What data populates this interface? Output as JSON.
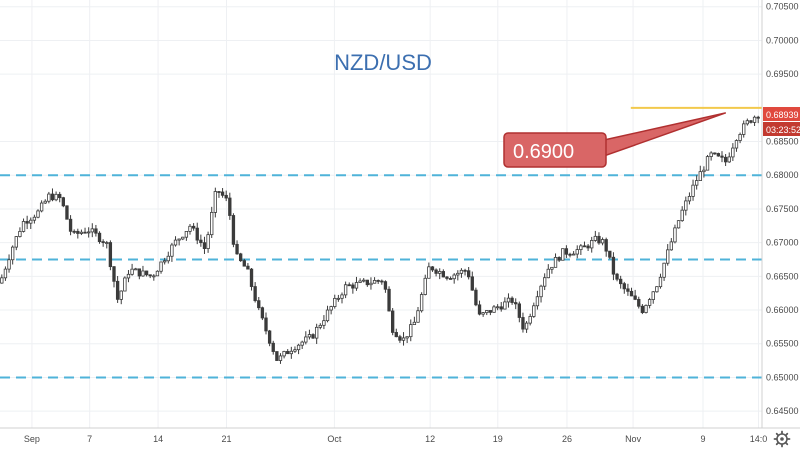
{
  "chart_data": {
    "type": "candlestick",
    "title": "NZD/USD",
    "ylim": [
      0.6425,
      0.706
    ],
    "y_ticks": [
      "0.70500",
      "0.70000",
      "0.69500",
      "0.68500",
      "0.68000",
      "0.67500",
      "0.67000",
      "0.66500",
      "0.66000",
      "0.65500",
      "0.65000",
      "0.64500"
    ],
    "x_ticks": [
      {
        "label": "Sep",
        "pos": 0.042
      },
      {
        "label": "7",
        "pos": 0.118
      },
      {
        "label": "14",
        "pos": 0.208
      },
      {
        "label": "21",
        "pos": 0.298
      },
      {
        "label": "Oct",
        "pos": 0.44
      },
      {
        "label": "12",
        "pos": 0.566
      },
      {
        "label": "19",
        "pos": 0.655
      },
      {
        "label": "26",
        "pos": 0.746
      },
      {
        "label": "Nov",
        "pos": 0.833
      },
      {
        "label": "9",
        "pos": 0.925
      },
      {
        "label": "14:0",
        "pos": 0.998
      }
    ],
    "support_levels": [
      0.68,
      0.6675,
      0.65
    ],
    "resistance_level": 0.69,
    "annotation": "0.6900",
    "last_price_label": "0.68939",
    "countdown_label": "03:23:52",
    "waypoints": [
      [
        0.0,
        0.664
      ],
      [
        0.015,
        0.669
      ],
      [
        0.03,
        0.673
      ],
      [
        0.05,
        0.6745
      ],
      [
        0.065,
        0.677
      ],
      [
        0.08,
        0.6765
      ],
      [
        0.095,
        0.671
      ],
      [
        0.115,
        0.672
      ],
      [
        0.14,
        0.67
      ],
      [
        0.155,
        0.6615
      ],
      [
        0.17,
        0.666
      ],
      [
        0.2,
        0.665
      ],
      [
        0.23,
        0.67
      ],
      [
        0.25,
        0.6725
      ],
      [
        0.27,
        0.669
      ],
      [
        0.285,
        0.678
      ],
      [
        0.3,
        0.676
      ],
      [
        0.31,
        0.668
      ],
      [
        0.325,
        0.666
      ],
      [
        0.34,
        0.66
      ],
      [
        0.355,
        0.6555
      ],
      [
        0.365,
        0.6525
      ],
      [
        0.385,
        0.6545
      ],
      [
        0.41,
        0.656
      ],
      [
        0.43,
        0.6595
      ],
      [
        0.455,
        0.6635
      ],
      [
        0.48,
        0.664
      ],
      [
        0.505,
        0.6645
      ],
      [
        0.515,
        0.6575
      ],
      [
        0.53,
        0.6555
      ],
      [
        0.545,
        0.658
      ],
      [
        0.565,
        0.6665
      ],
      [
        0.59,
        0.665
      ],
      [
        0.615,
        0.666
      ],
      [
        0.63,
        0.659
      ],
      [
        0.655,
        0.6605
      ],
      [
        0.675,
        0.6615
      ],
      [
        0.69,
        0.657
      ],
      [
        0.705,
        0.662
      ],
      [
        0.72,
        0.666
      ],
      [
        0.74,
        0.6685
      ],
      [
        0.765,
        0.669
      ],
      [
        0.785,
        0.6705
      ],
      [
        0.795,
        0.67
      ],
      [
        0.81,
        0.6645
      ],
      [
        0.83,
        0.662
      ],
      [
        0.845,
        0.66
      ],
      [
        0.865,
        0.664
      ],
      [
        0.88,
        0.669
      ],
      [
        0.895,
        0.674
      ],
      [
        0.915,
        0.679
      ],
      [
        0.935,
        0.683
      ],
      [
        0.955,
        0.682
      ],
      [
        0.97,
        0.686
      ],
      [
        0.985,
        0.688
      ],
      [
        1.0,
        0.6894
      ]
    ]
  },
  "colors": {
    "up": "#26a69a",
    "down": "#ef5350",
    "candle": "#3b3b3b",
    "support_line": "#4fb3d9",
    "resistance_line": "#f2c94c",
    "callout_fill": "#d96666",
    "callout_stroke": "#b03030",
    "price_tag": "#e0493e",
    "title": "#3c6fb0"
  },
  "icons": {
    "settings": "gear-icon"
  }
}
